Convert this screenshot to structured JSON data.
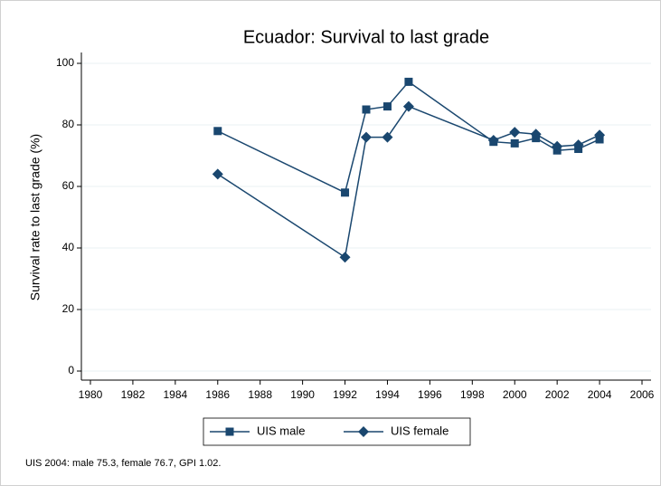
{
  "chart_data": {
    "type": "line",
    "title": "Ecuador: Survival to last grade",
    "y_label": "Survival rate to last grade (%)",
    "note": "UIS 2004: male 75.3, female 76.7, GPI 1.02.",
    "x": [
      1986,
      1992,
      1993,
      1994,
      1995,
      1999,
      2000,
      2001,
      2002,
      2003,
      2004
    ],
    "series": [
      {
        "name": "UIS male",
        "color": "#1a476f",
        "marker": "square",
        "values": [
          78,
          58,
          85,
          86,
          94,
          74.5,
          74,
          75.7,
          71.7,
          72.2,
          75.3
        ]
      },
      {
        "name": "UIS female",
        "color": "#1a476f",
        "marker": "diamond",
        "values": [
          64,
          37,
          76,
          76,
          86,
          75,
          77.6,
          77,
          73,
          73.5,
          76.7
        ]
      }
    ],
    "xlim": [
      1980,
      2006
    ],
    "xticks": [
      1980,
      1982,
      1984,
      1986,
      1988,
      1990,
      1992,
      1994,
      1996,
      1998,
      2000,
      2002,
      2004,
      2006
    ],
    "ylim": [
      0,
      100
    ],
    "yticks": [
      0,
      20,
      40,
      60,
      80,
      100
    ],
    "grid": true,
    "legend": "bottom"
  }
}
